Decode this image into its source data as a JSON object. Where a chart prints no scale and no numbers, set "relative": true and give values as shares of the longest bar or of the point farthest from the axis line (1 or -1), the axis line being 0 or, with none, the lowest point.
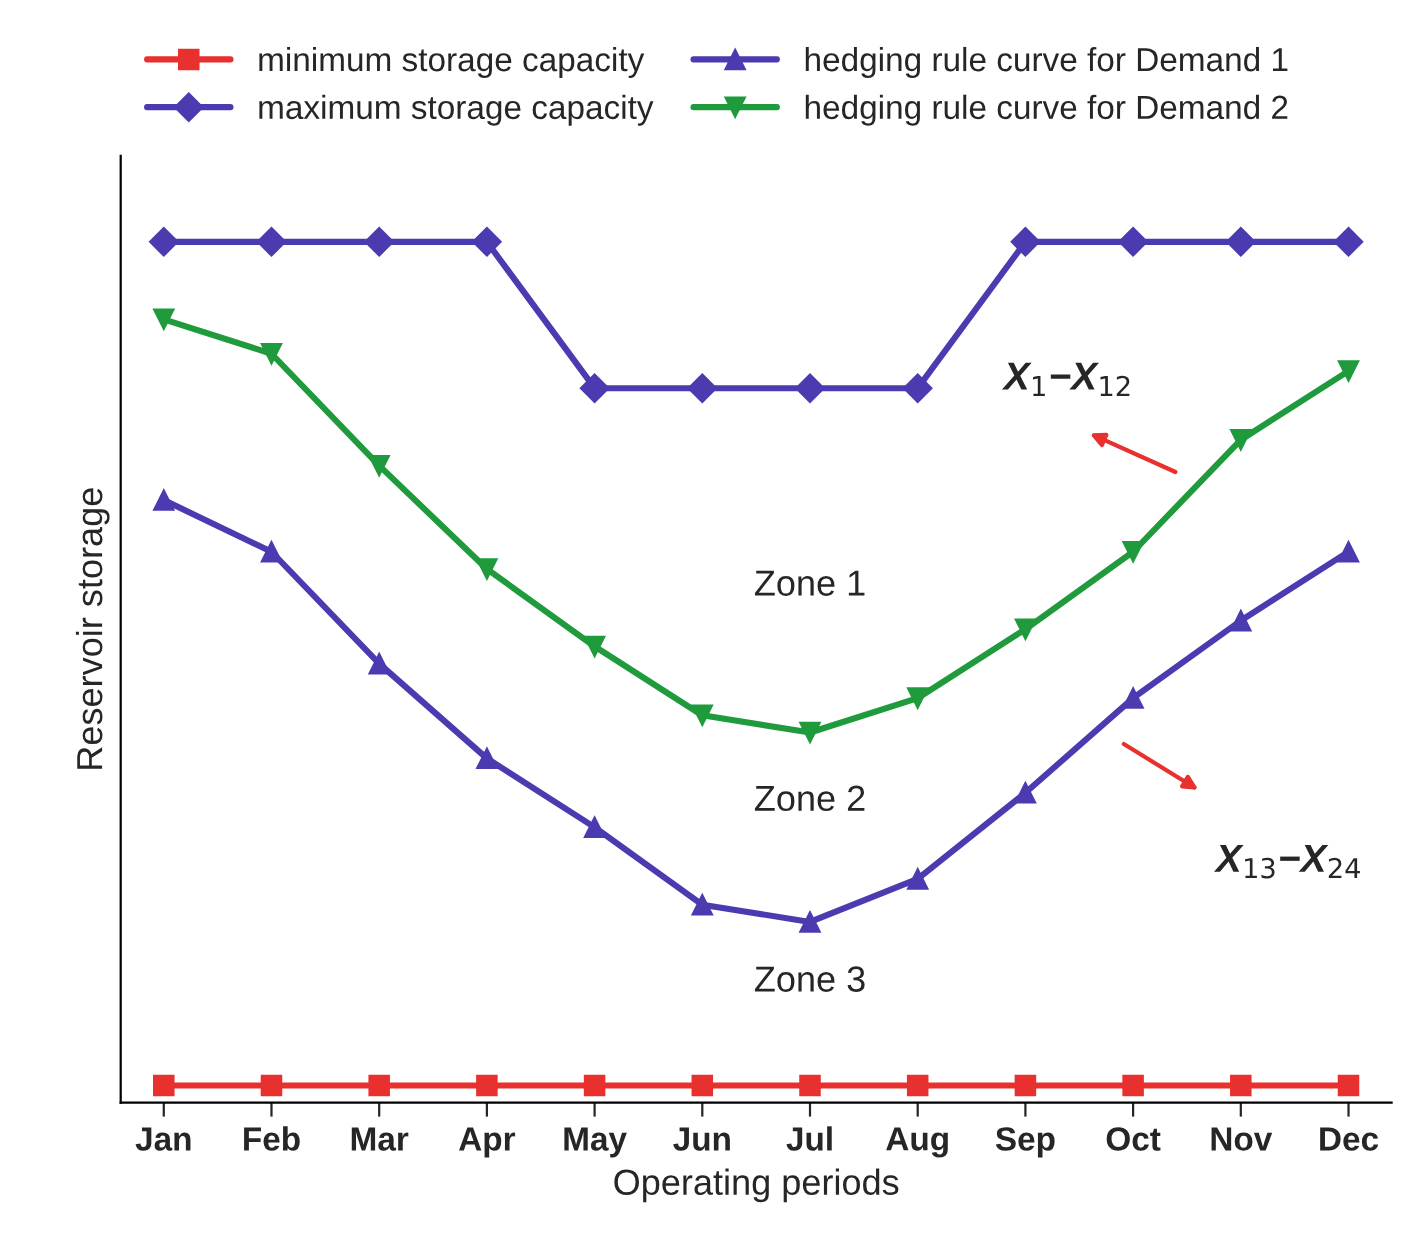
{
  "chart_data": {
    "type": "line",
    "relative": true,
    "xlabel": "Operating periods",
    "ylabel": "Reservoir storage",
    "categories": [
      "Jan",
      "Feb",
      "Mar",
      "Apr",
      "May",
      "Jun",
      "Jul",
      "Aug",
      "Sep",
      "Oct",
      "Nov",
      "Dec"
    ],
    "series": [
      {
        "name": "minimum storage capacity",
        "color": "#e8312f",
        "marker": "square",
        "values": [
          0.02,
          0.02,
          0.02,
          0.02,
          0.02,
          0.02,
          0.02,
          0.02,
          0.02,
          0.02,
          0.02,
          0.02
        ]
      },
      {
        "name": "maximum storage capacity",
        "color": "#4b3bb0",
        "marker": "diamond",
        "values": [
          1,
          1,
          1,
          1,
          0.83,
          0.83,
          0.83,
          0.83,
          1,
          1,
          1,
          1
        ]
      },
      {
        "name": "hedging rule curve for Demand 1",
        "color": "#4b3bb0",
        "marker": "triangle",
        "values": [
          0.7,
          0.64,
          0.51,
          0.4,
          0.32,
          0.23,
          0.21,
          0.26,
          0.36,
          0.47,
          0.56,
          0.64
        ]
      },
      {
        "name": "hedging rule curve for Demand 2",
        "color": "#1f9a3c",
        "marker": "triangle",
        "values": [
          0.91,
          0.87,
          0.74,
          0.62,
          0.53,
          0.45,
          0.43,
          0.47,
          0.55,
          0.64,
          0.77,
          0.85
        ]
      }
    ],
    "annotations": [
      "Zone 1",
      "Zone 2",
      "Zone 3",
      "X$_{1}$−X$_{12}$",
      "X$_{13}$−X$_{24}$"
    ],
    "legend": "top",
    "grid": false
  }
}
